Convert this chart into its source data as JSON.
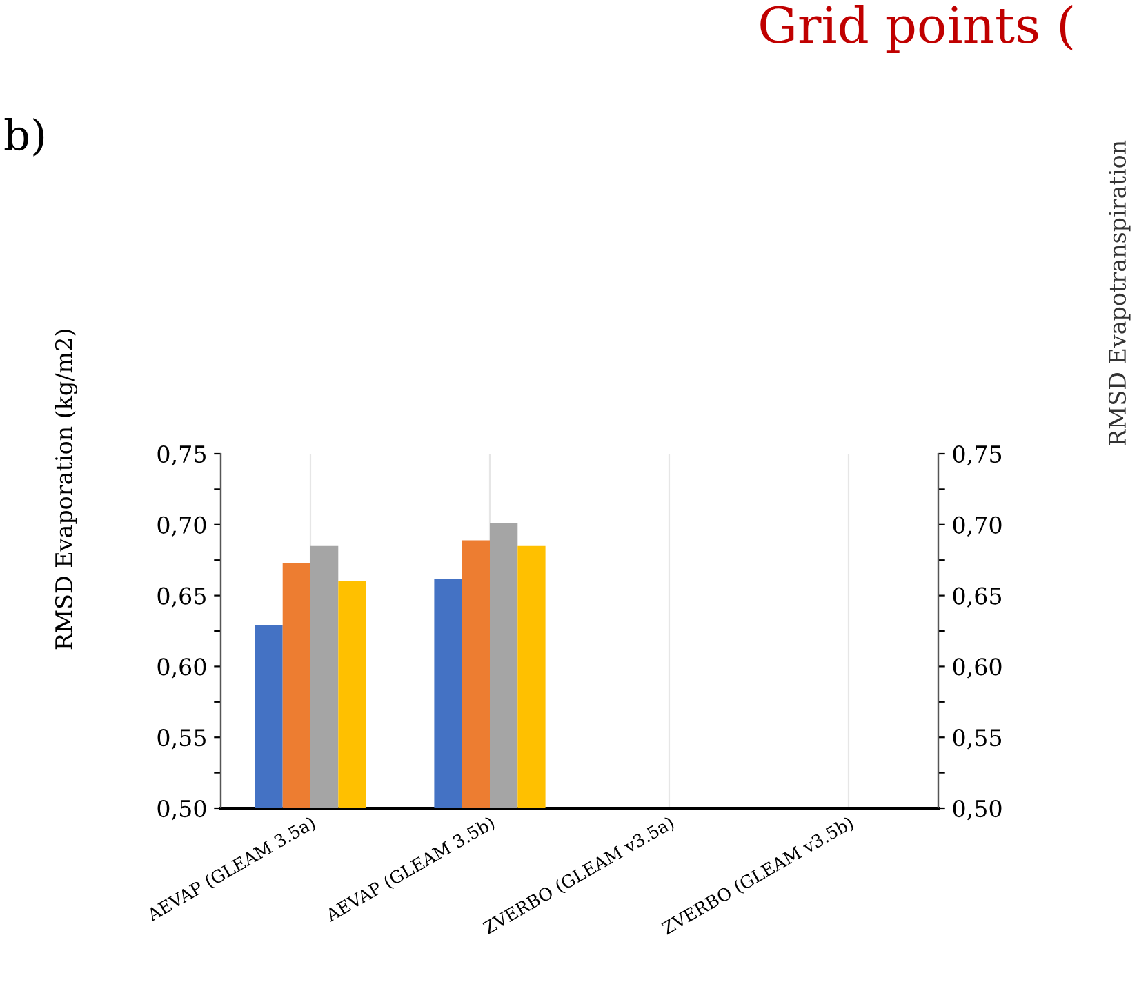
{
  "chart_data": {
    "type": "bar",
    "categories": [
      "AEVAP (GLEAM 3.5a)",
      "AEVAP (GLEAM 3.5b)",
      "ZVERBO (GLEAM v3.5a)",
      "ZVERBO (GLEAM v3.5b)"
    ],
    "series": [
      {
        "color": "#4472c4",
        "values": [
          0.629,
          0.662,
          null,
          null
        ]
      },
      {
        "color": "#ed7d31",
        "values": [
          0.673,
          0.689,
          null,
          null
        ]
      },
      {
        "color": "#a5a5a5",
        "values": [
          0.685,
          0.701,
          null,
          null
        ]
      },
      {
        "color": "#ffc000",
        "values": [
          0.66,
          0.685,
          null,
          null
        ]
      }
    ],
    "ylabel": "RMSD Evaporation (kg/m2)",
    "ylim": [
      0.5,
      0.75
    ],
    "yticks": [
      {
        "value": 0.5,
        "label": "0,50"
      },
      {
        "value": 0.525,
        "label": null
      },
      {
        "value": 0.55,
        "label": "0,55"
      },
      {
        "value": 0.575,
        "label": null
      },
      {
        "value": 0.6,
        "label": "0,60"
      },
      {
        "value": 0.625,
        "label": null
      },
      {
        "value": 0.65,
        "label": "0,65"
      },
      {
        "value": 0.675,
        "label": null
      },
      {
        "value": 0.7,
        "label": "0,70"
      },
      {
        "value": 0.725,
        "label": null
      },
      {
        "value": 0.75,
        "label": "0,75"
      }
    ],
    "y2lim": [
      0.5,
      0.75
    ],
    "y2ticks": [
      {
        "value": 0.5,
        "label": "0,50"
      },
      {
        "value": 0.525,
        "label": null
      },
      {
        "value": 0.55,
        "label": "0,55"
      },
      {
        "value": 0.575,
        "label": null
      },
      {
        "value": 0.6,
        "label": "0,60"
      },
      {
        "value": 0.625,
        "label": null
      },
      {
        "value": 0.65,
        "label": "0,65"
      },
      {
        "value": 0.675,
        "label": null
      },
      {
        "value": 0.7,
        "label": "0,70"
      },
      {
        "value": 0.725,
        "label": null
      },
      {
        "value": 0.75,
        "label": "0,75"
      }
    ],
    "grid": "x",
    "annotations": [
      "b)",
      "Grid points (",
      "RMSD Evapotranspiration"
    ]
  }
}
